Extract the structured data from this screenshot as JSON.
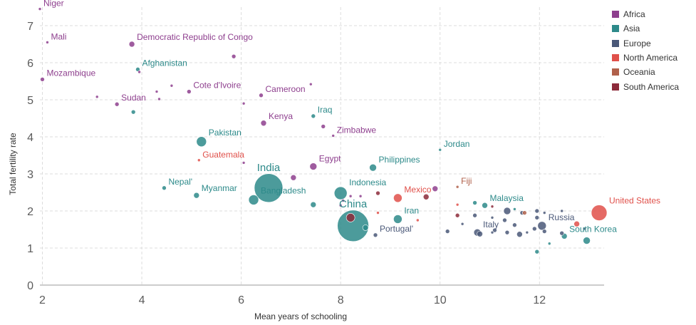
{
  "chart_data": {
    "type": "scatter",
    "title": "",
    "xlabel": "Mean years of schooling",
    "ylabel": "Total fertility rate",
    "xlim": [
      1.95,
      13.3
    ],
    "ylim": [
      0,
      7.5
    ],
    "x_ticks": [
      "2",
      "4",
      "6",
      "8",
      "10",
      "12"
    ],
    "y_ticks": [
      "0",
      "1",
      "2",
      "3",
      "4",
      "5",
      "6",
      "7"
    ],
    "grid": true,
    "legend": [
      {
        "name": "Africa",
        "color": "#8e3f8e"
      },
      {
        "name": "Asia",
        "color": "#2d8a8a"
      },
      {
        "name": "Europe",
        "color": "#4a5878"
      },
      {
        "name": "North America",
        "color": "#e0504a"
      },
      {
        "name": "Oceania",
        "color": "#b0604a"
      },
      {
        "name": "South America",
        "color": "#8c2a3a"
      }
    ],
    "points": [
      {
        "label": "Niger",
        "x": 1.95,
        "y": 7.45,
        "region": "Africa",
        "size": 2
      },
      {
        "label": "Mali",
        "x": 2.1,
        "y": 6.55,
        "region": "Africa",
        "size": 2
      },
      {
        "label": "Democratic Republic of Congo",
        "x": 3.8,
        "y": 6.5,
        "region": "Africa",
        "size": 4
      },
      {
        "label": "Mozambique",
        "x": 2.0,
        "y": 5.55,
        "region": "Africa",
        "size": 3
      },
      {
        "label": "Afghanistan",
        "x": 3.92,
        "y": 5.82,
        "region": "Asia",
        "size": 3
      },
      {
        "label": "Cote d'Ivoire",
        "x": 4.95,
        "y": 5.22,
        "region": "Africa",
        "size": 3
      },
      {
        "label": "Sudan",
        "x": 3.5,
        "y": 4.88,
        "region": "Africa",
        "size": 3
      },
      {
        "label": "Cameroon",
        "x": 6.4,
        "y": 5.12,
        "region": "Africa",
        "size": 3
      },
      {
        "label": "Iraq",
        "x": 7.45,
        "y": 4.56,
        "region": "Asia",
        "size": 3
      },
      {
        "label": "Kenya",
        "x": 6.45,
        "y": 4.37,
        "region": "Africa",
        "size": 4
      },
      {
        "label": "Zimbabwe",
        "x": 7.85,
        "y": 4.03,
        "region": "Africa",
        "size": 2
      },
      {
        "label": "Pakistan",
        "x": 5.2,
        "y": 3.87,
        "region": "Asia",
        "size": 7
      },
      {
        "label": "Jordan",
        "x": 10.0,
        "y": 3.65,
        "region": "Asia",
        "size": 2
      },
      {
        "label": "Guatemala",
        "x": 5.15,
        "y": 3.37,
        "region": "North America",
        "size": 2
      },
      {
        "label": "Egypt",
        "x": 7.45,
        "y": 3.2,
        "region": "Africa",
        "size": 5
      },
      {
        "label": "Philippines",
        "x": 8.65,
        "y": 3.17,
        "region": "Asia",
        "size": 5
      },
      {
        "label": "India",
        "x": 6.55,
        "y": 2.62,
        "region": "Asia",
        "size": 20
      },
      {
        "label": "Nepal'",
        "x": 4.45,
        "y": 2.62,
        "region": "Asia",
        "size": 3
      },
      {
        "label": "Myanmar",
        "x": 5.1,
        "y": 2.42,
        "region": "Asia",
        "size": 4
      },
      {
        "label": "Bangladesh",
        "x": 6.25,
        "y": 2.3,
        "region": "Asia",
        "size": 7
      },
      {
        "label": "Indonesia",
        "x": 8.0,
        "y": 2.48,
        "region": "Asia",
        "size": 9
      },
      {
        "label": "Mexico",
        "x": 9.15,
        "y": 2.35,
        "region": "North America",
        "size": 6
      },
      {
        "label": "Fiji",
        "x": 10.35,
        "y": 2.65,
        "region": "Oceania",
        "size": 2
      },
      {
        "label": "China",
        "x": 8.25,
        "y": 1.6,
        "region": "Asia",
        "size": 22
      },
      {
        "label": "Iran",
        "x": 9.15,
        "y": 1.78,
        "region": "Asia",
        "size": 6
      },
      {
        "label": "Portugal'",
        "x": 8.7,
        "y": 1.35,
        "region": "Europe",
        "size": 3
      },
      {
        "label": "Malaysia",
        "x": 10.9,
        "y": 2.15,
        "region": "Asia",
        "size": 4
      },
      {
        "label": "United States",
        "x": 13.2,
        "y": 1.95,
        "region": "North America",
        "size": 11
      },
      {
        "label": "Russia",
        "x": 12.05,
        "y": 1.6,
        "region": "Europe",
        "size": 6
      },
      {
        "label": "Italy",
        "x": 10.75,
        "y": 1.42,
        "region": "Europe",
        "size": 5
      },
      {
        "label": "South Korea",
        "x": 12.5,
        "y": 1.32,
        "region": "Asia",
        "size": 4
      },
      {
        "label": "",
        "x": 12.95,
        "y": 1.2,
        "region": "Asia",
        "size": 5
      },
      {
        "label": "",
        "x": 11.95,
        "y": 0.9,
        "region": "Asia",
        "size": 3
      },
      {
        "label": "",
        "x": 12.2,
        "y": 1.12,
        "region": "Asia",
        "size": 2
      },
      {
        "label": "",
        "x": 5.85,
        "y": 6.17,
        "region": "Africa",
        "size": 3
      },
      {
        "label": "",
        "x": 4.3,
        "y": 5.22,
        "region": "Africa",
        "size": 2
      },
      {
        "label": "",
        "x": 4.35,
        "y": 5.02,
        "region": "Africa",
        "size": 2
      },
      {
        "label": "",
        "x": 4.6,
        "y": 5.38,
        "region": "Africa",
        "size": 2
      },
      {
        "label": "",
        "x": 3.1,
        "y": 5.08,
        "region": "Africa",
        "size": 2
      },
      {
        "label": "",
        "x": 3.95,
        "y": 5.75,
        "region": "Africa",
        "size": 2
      },
      {
        "label": "",
        "x": 7.4,
        "y": 5.42,
        "region": "Africa",
        "size": 2
      },
      {
        "label": "",
        "x": 6.05,
        "y": 4.9,
        "region": "Africa",
        "size": 2
      },
      {
        "label": "",
        "x": 3.83,
        "y": 4.67,
        "region": "Asia",
        "size": 3
      },
      {
        "label": "",
        "x": 7.65,
        "y": 4.28,
        "region": "Africa",
        "size": 3
      },
      {
        "label": "",
        "x": 6.05,
        "y": 3.3,
        "region": "Africa",
        "size": 2
      },
      {
        "label": "",
        "x": 7.05,
        "y": 2.9,
        "region": "Africa",
        "size": 4
      },
      {
        "label": "",
        "x": 9.9,
        "y": 2.6,
        "region": "Africa",
        "size": 4
      },
      {
        "label": "",
        "x": 9.72,
        "y": 2.38,
        "region": "South America",
        "size": 4
      },
      {
        "label": "",
        "x": 8.75,
        "y": 2.48,
        "region": "South America",
        "size": 3
      },
      {
        "label": "",
        "x": 8.2,
        "y": 2.4,
        "region": "Africa",
        "size": 2
      },
      {
        "label": "",
        "x": 8.4,
        "y": 2.4,
        "region": "Africa",
        "size": 2
      },
      {
        "label": "",
        "x": 8.0,
        "y": 2.15,
        "region": "Africa",
        "size": 2
      },
      {
        "label": "",
        "x": 8.05,
        "y": 2.28,
        "region": "Africa",
        "size": 2
      },
      {
        "label": "",
        "x": 7.45,
        "y": 2.17,
        "region": "Asia",
        "size": 4
      },
      {
        "label": "",
        "x": 8.2,
        "y": 1.82,
        "region": "South America",
        "size": 6
      },
      {
        "label": "",
        "x": 8.5,
        "y": 1.55,
        "region": "Asia",
        "size": 4
      },
      {
        "label": "",
        "x": 8.75,
        "y": 1.95,
        "region": "North America",
        "size": 2
      },
      {
        "label": "",
        "x": 9.55,
        "y": 1.75,
        "region": "North America",
        "size": 2
      },
      {
        "label": "",
        "x": 10.35,
        "y": 2.17,
        "region": "North America",
        "size": 2
      },
      {
        "label": "",
        "x": 10.35,
        "y": 1.88,
        "region": "South America",
        "size": 3
      },
      {
        "label": "",
        "x": 10.45,
        "y": 1.65,
        "region": "Europe",
        "size": 2
      },
      {
        "label": "",
        "x": 10.15,
        "y": 1.45,
        "region": "Europe",
        "size": 3
      },
      {
        "label": "",
        "x": 10.7,
        "y": 1.88,
        "region": "Europe",
        "size": 3
      },
      {
        "label": "",
        "x": 10.7,
        "y": 2.22,
        "region": "Asia",
        "size": 3
      },
      {
        "label": "",
        "x": 10.8,
        "y": 1.38,
        "region": "Europe",
        "size": 4
      },
      {
        "label": "",
        "x": 11.05,
        "y": 1.82,
        "region": "Europe",
        "size": 2
      },
      {
        "label": "",
        "x": 11.05,
        "y": 2.12,
        "region": "South America",
        "size": 2
      },
      {
        "label": "",
        "x": 11.1,
        "y": 1.48,
        "region": "Europe",
        "size": 3
      },
      {
        "label": "",
        "x": 11.05,
        "y": 1.42,
        "region": "Europe",
        "size": 2
      },
      {
        "label": "",
        "x": 11.35,
        "y": 2.0,
        "region": "Europe",
        "size": 5
      },
      {
        "label": "",
        "x": 11.3,
        "y": 1.75,
        "region": "Europe",
        "size": 3
      },
      {
        "label": "",
        "x": 11.35,
        "y": 1.42,
        "region": "Europe",
        "size": 3
      },
      {
        "label": "",
        "x": 11.5,
        "y": 1.62,
        "region": "Europe",
        "size": 3
      },
      {
        "label": "",
        "x": 11.5,
        "y": 2.05,
        "region": "Asia",
        "size": 2
      },
      {
        "label": "",
        "x": 11.6,
        "y": 1.37,
        "region": "Europe",
        "size": 4
      },
      {
        "label": "",
        "x": 11.65,
        "y": 1.95,
        "region": "Europe",
        "size": 3
      },
      {
        "label": "",
        "x": 11.7,
        "y": 1.95,
        "region": "Oceania",
        "size": 3
      },
      {
        "label": "",
        "x": 11.75,
        "y": 1.42,
        "region": "Europe",
        "size": 2
      },
      {
        "label": "",
        "x": 11.9,
        "y": 1.52,
        "region": "Europe",
        "size": 3
      },
      {
        "label": "",
        "x": 11.95,
        "y": 2.0,
        "region": "Europe",
        "size": 3
      },
      {
        "label": "",
        "x": 11.95,
        "y": 1.82,
        "region": "Europe",
        "size": 3
      },
      {
        "label": "",
        "x": 12.1,
        "y": 1.45,
        "region": "Europe",
        "size": 3
      },
      {
        "label": "",
        "x": 12.1,
        "y": 1.95,
        "region": "Europe",
        "size": 2
      },
      {
        "label": "",
        "x": 12.45,
        "y": 2.0,
        "region": "Europe",
        "size": 2
      },
      {
        "label": "",
        "x": 12.45,
        "y": 1.4,
        "region": "Europe",
        "size": 3
      },
      {
        "label": "",
        "x": 12.75,
        "y": 1.65,
        "region": "North America",
        "size": 4
      },
      {
        "label": "",
        "x": 12.9,
        "y": 1.52,
        "region": "Europe",
        "size": 2
      }
    ]
  }
}
